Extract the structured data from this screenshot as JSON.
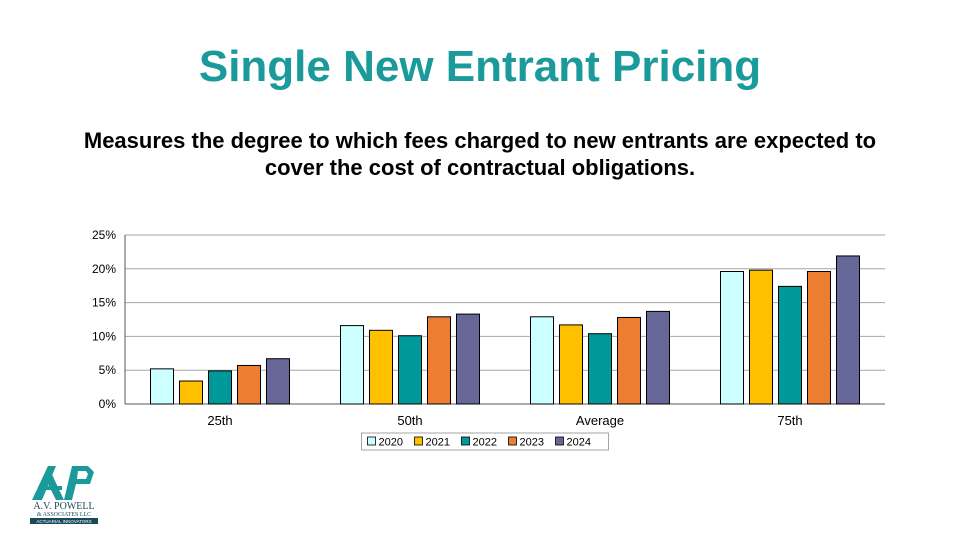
{
  "slide": {
    "title": "Single New Entrant Pricing",
    "subtitle": "Measures the degree to which fees charged to new entrants are expected to cover the cost of contractual obligations."
  },
  "logo": {
    "line1": "A.V. POWELL",
    "line2": "& ASSOCIATES LLC",
    "line3": "ACTUARIAL INNOVATORS",
    "icon": "avp-logo-icon"
  },
  "chart_data": {
    "type": "bar",
    "categories": [
      "25th",
      "50th",
      "Average",
      "75th"
    ],
    "series": [
      {
        "name": "2020",
        "color": "#ccffff",
        "values": [
          5.2,
          11.6,
          12.9,
          19.6
        ]
      },
      {
        "name": "2021",
        "color": "#ffc000",
        "values": [
          3.4,
          10.9,
          11.7,
          19.8
        ]
      },
      {
        "name": "2022",
        "color": "#009999",
        "values": [
          4.9,
          10.1,
          10.4,
          17.4
        ]
      },
      {
        "name": "2023",
        "color": "#ed7d31",
        "values": [
          5.7,
          12.9,
          12.8,
          19.6
        ]
      },
      {
        "name": "2024",
        "color": "#666699",
        "values": [
          6.7,
          13.3,
          13.7,
          21.9
        ]
      }
    ],
    "yticks": [
      "0%",
      "5%",
      "10%",
      "15%",
      "20%",
      "25%"
    ],
    "ylim": [
      0,
      25
    ],
    "unit": "%",
    "grid": true,
    "legend_position": "bottom"
  }
}
